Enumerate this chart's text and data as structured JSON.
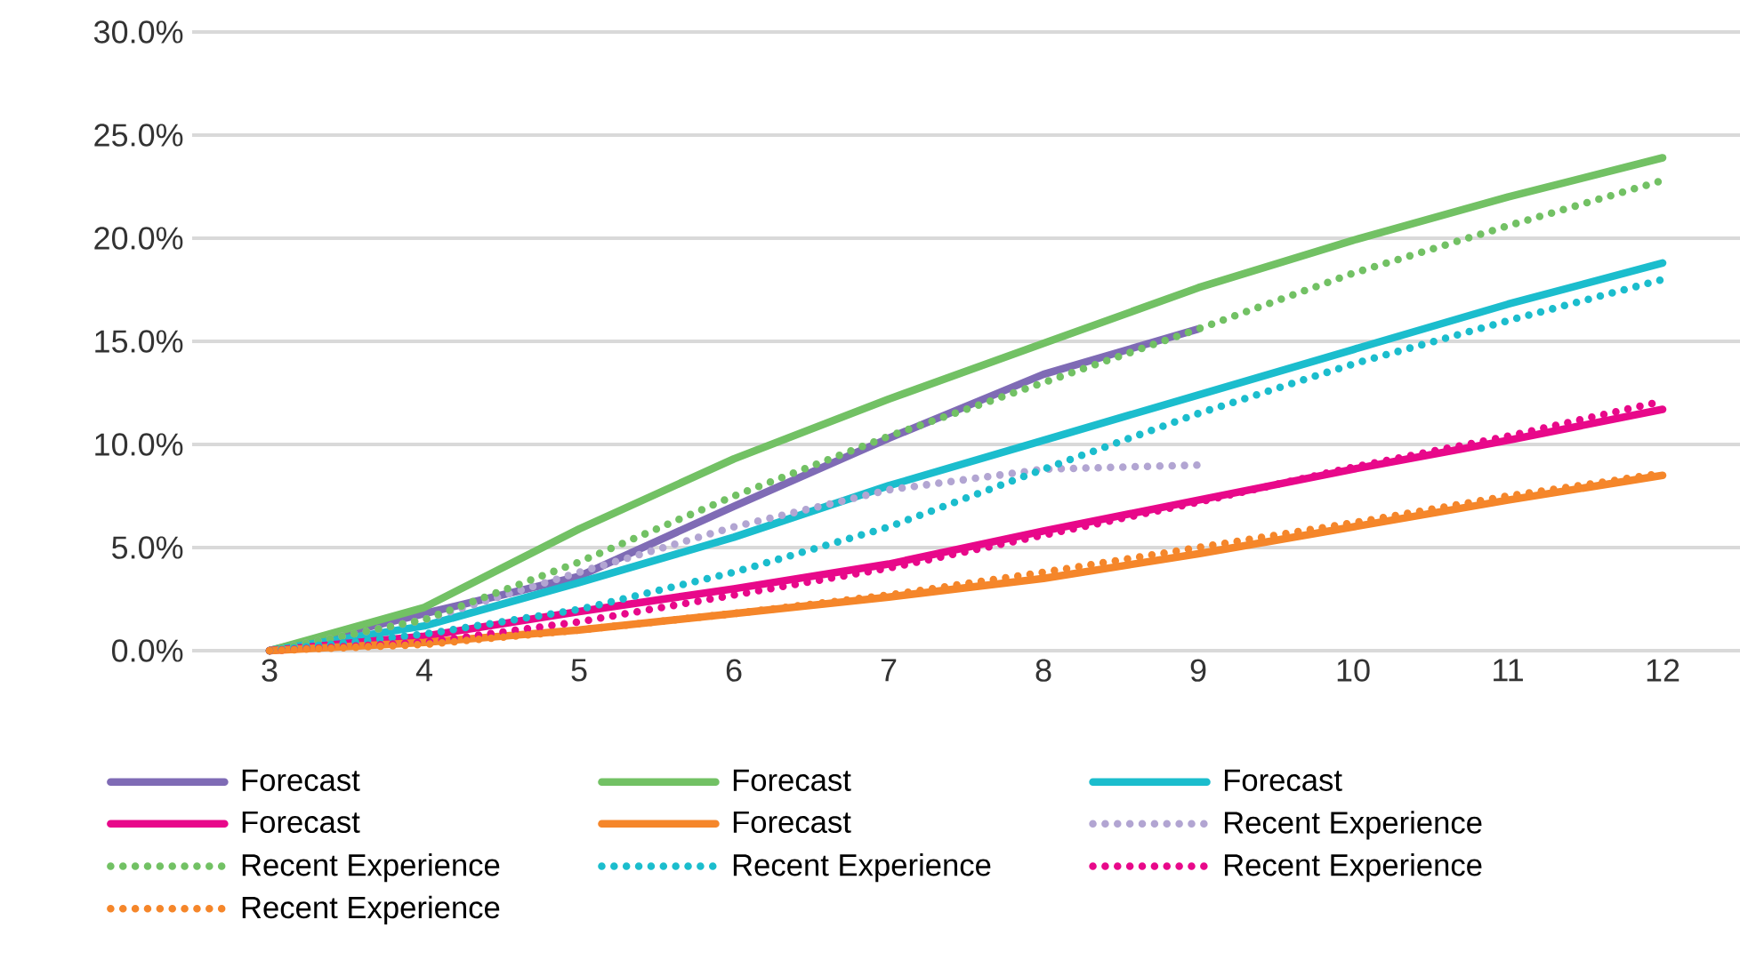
{
  "chart_data": {
    "type": "line",
    "x": [
      3,
      4,
      5,
      6,
      7,
      8,
      9,
      10,
      11,
      12
    ],
    "xlim": [
      2.5,
      12.5
    ],
    "xticks": [
      3,
      4,
      5,
      6,
      7,
      8,
      9,
      10,
      11,
      12
    ],
    "ylim": [
      0,
      30
    ],
    "yticks": [
      {
        "value": 0,
        "label": "0.0%"
      },
      {
        "value": 5,
        "label": "5.0%"
      },
      {
        "value": 10,
        "label": "10.0%"
      },
      {
        "value": 15,
        "label": "15.0%"
      },
      {
        "value": 20,
        "label": "20.0%"
      },
      {
        "value": 25,
        "label": "25.0%"
      },
      {
        "value": 30,
        "label": "30.0%"
      }
    ],
    "grid": "y",
    "legend": "bottom",
    "marker": "none",
    "series": [
      {
        "name": "Forecast",
        "color": "#7f6bb5",
        "line_style": "solid",
        "values": [
          0,
          1.8,
          3.6,
          7.0,
          10.3,
          13.4,
          15.6,
          null,
          null,
          null
        ]
      },
      {
        "name": "Forecast",
        "color": "#72c164",
        "line_style": "solid",
        "values": [
          0,
          2.1,
          5.9,
          9.3,
          12.2,
          14.9,
          17.6,
          19.9,
          22.0,
          23.9
        ]
      },
      {
        "name": "Forecast",
        "color": "#1bbdcd",
        "line_style": "solid",
        "values": [
          0,
          1.2,
          3.3,
          5.5,
          8.0,
          10.2,
          12.4,
          14.6,
          16.8,
          18.8
        ]
      },
      {
        "name": "Forecast",
        "color": "#e8088a",
        "line_style": "solid",
        "values": [
          0,
          0.7,
          1.9,
          3.0,
          4.2,
          5.8,
          7.3,
          8.8,
          10.2,
          11.7
        ]
      },
      {
        "name": "Forecast",
        "color": "#f5862a",
        "line_style": "solid",
        "values": [
          0,
          0.4,
          1.0,
          1.8,
          2.6,
          3.5,
          4.7,
          6.0,
          7.3,
          8.5
        ]
      },
      {
        "name": "Recent Experience",
        "color": "#b2a5d2",
        "line_style": "dotted",
        "values": [
          0,
          1.5,
          3.8,
          6.0,
          7.8,
          8.8,
          9.0,
          null,
          null,
          null
        ]
      },
      {
        "name": "Recent Experience",
        "color": "#72c164",
        "line_style": "dotted",
        "values": [
          0,
          1.5,
          4.3,
          7.5,
          10.4,
          13.0,
          15.6,
          18.3,
          20.6,
          22.8
        ]
      },
      {
        "name": "Recent Experience",
        "color": "#1bbdcd",
        "line_style": "dotted",
        "values": [
          0,
          0.8,
          2.0,
          3.8,
          6.0,
          8.8,
          11.5,
          13.9,
          16.0,
          18.0
        ]
      },
      {
        "name": "Recent Experience",
        "color": "#e8088a",
        "line_style": "dotted",
        "values": [
          0,
          0.4,
          1.4,
          2.7,
          4.0,
          5.6,
          7.2,
          8.9,
          10.4,
          12.1
        ]
      },
      {
        "name": "Recent Experience",
        "color": "#f5862a",
        "line_style": "dotted",
        "values": [
          0,
          0.3,
          1.0,
          1.8,
          2.7,
          3.8,
          5.0,
          6.2,
          7.5,
          8.6
        ]
      }
    ]
  }
}
